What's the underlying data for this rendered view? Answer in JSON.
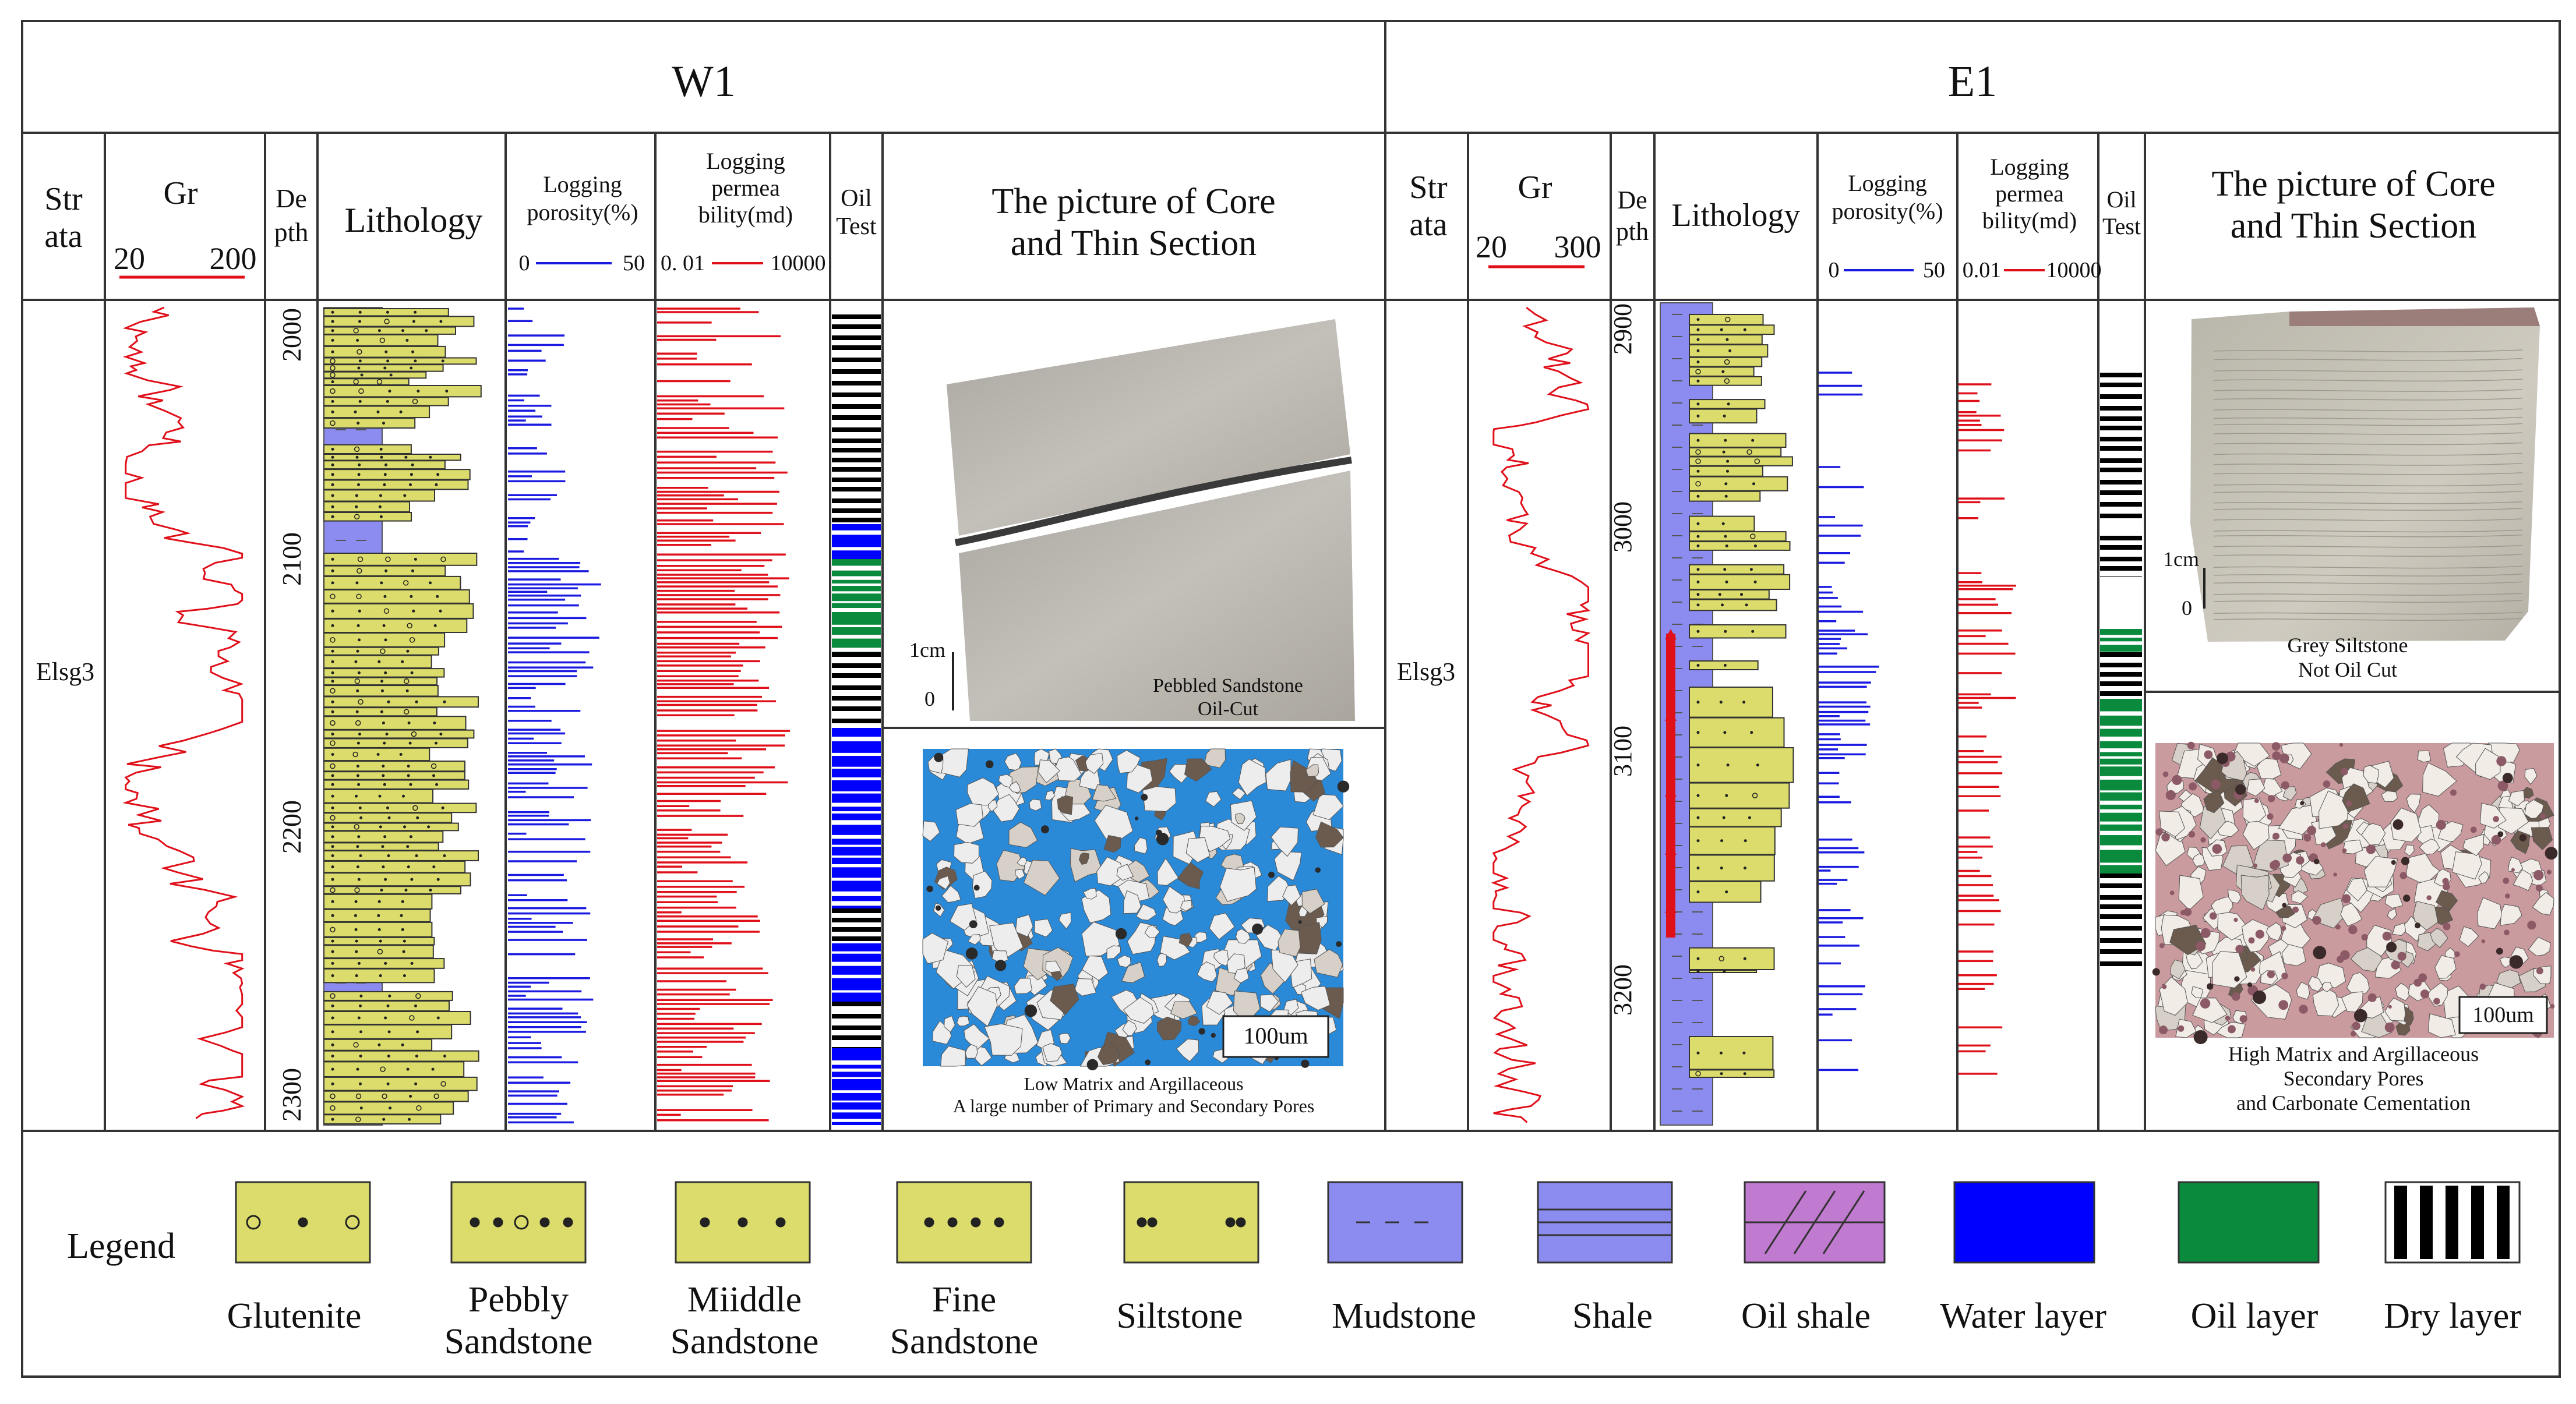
{
  "colors": {
    "gr": "#e0101a",
    "porosity": "#1a1ae0",
    "perm": "#e0101a",
    "lith_sand": "#dcdc6c",
    "lith_mud": "#8c8cf0",
    "oil": "#0a8a3c",
    "water": "#0000ff",
    "oil_shale": "#c07ad0",
    "dry": "#000000",
    "core": "#b8b5ae",
    "thin_blue": "#2a8ad8",
    "thin_grain": "#ececec",
    "thin_pink": "#c99a9e"
  },
  "wells": [
    {
      "name": "W1",
      "headers": {
        "strata": [
          "Str",
          "ata"
        ],
        "gr": "Gr",
        "gr_min": "20",
        "gr_max": "200",
        "depth": [
          "De",
          "pth"
        ],
        "lithology": "Lithology",
        "porosity": [
          "Logging",
          "porosity(%)"
        ],
        "por_min": "0",
        "por_max": "50",
        "perm": [
          "Logging",
          "permea",
          "bility(md)"
        ],
        "perm_min": "0. 01",
        "perm_max": "10000",
        "oil": [
          "Oil",
          "Test"
        ],
        "picture": [
          "The picture of Core",
          "and Thin Section"
        ]
      },
      "strata_label": "Elsg3",
      "depth_ticks": [
        "2000",
        "2100",
        "2200",
        "2300"
      ],
      "core": {
        "scale_label": "1cm",
        "scale_zero": "0",
        "caption": [
          "Pebbled Sandstone",
          "Oil-Cut"
        ]
      },
      "thin": {
        "scale_label": "100um",
        "caption": [
          "Low Matrix and Argillaceous",
          "A large number of Primary and Secondary Pores"
        ]
      }
    },
    {
      "name": "E1",
      "headers": {
        "strata": [
          "Str",
          "ata"
        ],
        "gr": "Gr",
        "gr_min": "20",
        "gr_max": "300",
        "depth": [
          "De",
          "pth"
        ],
        "lithology": "Lithology",
        "porosity": [
          "Logging",
          "porosity(%)"
        ],
        "por_min": "0",
        "por_max": "50",
        "perm": [
          "Logging",
          "permea",
          "bility(md)"
        ],
        "perm_min": "0.01",
        "perm_max": "10000",
        "oil": [
          "Oil",
          "Test"
        ],
        "picture": [
          "The picture of Core",
          "and Thin Section"
        ]
      },
      "strata_label": "Elsg3",
      "depth_ticks": [
        "2900",
        "3000",
        "3100",
        "3200"
      ],
      "core": {
        "scale_label": "1cm",
        "scale_zero": "0",
        "caption": [
          "Grey Siltstone",
          "Not Oil Cut"
        ]
      },
      "thin": {
        "scale_label": "100um",
        "caption": [
          "High Matrix and Argillaceous",
          "Secondary Pores",
          "and Carbonate Cementation"
        ]
      }
    }
  ],
  "legend": {
    "title": "Legend",
    "items": [
      {
        "key": "glutenite",
        "label": [
          "Glutenite"
        ]
      },
      {
        "key": "pebbly",
        "label": [
          "Pebbly",
          "Sandstone"
        ]
      },
      {
        "key": "middle",
        "label": [
          "Miiddle",
          "Sandstone"
        ]
      },
      {
        "key": "fine",
        "label": [
          "Fine",
          "Sandstone"
        ]
      },
      {
        "key": "silt",
        "label": [
          "Siltstone"
        ]
      },
      {
        "key": "mud",
        "label": [
          "Mudstone"
        ]
      },
      {
        "key": "shale",
        "label": [
          "Shale"
        ]
      },
      {
        "key": "oilshale",
        "label": [
          "Oil shale"
        ]
      },
      {
        "key": "water",
        "label": [
          "Water layer"
        ]
      },
      {
        "key": "oil",
        "label": [
          "Oil layer"
        ]
      },
      {
        "key": "dry",
        "label": [
          "Dry layer"
        ]
      }
    ]
  }
}
